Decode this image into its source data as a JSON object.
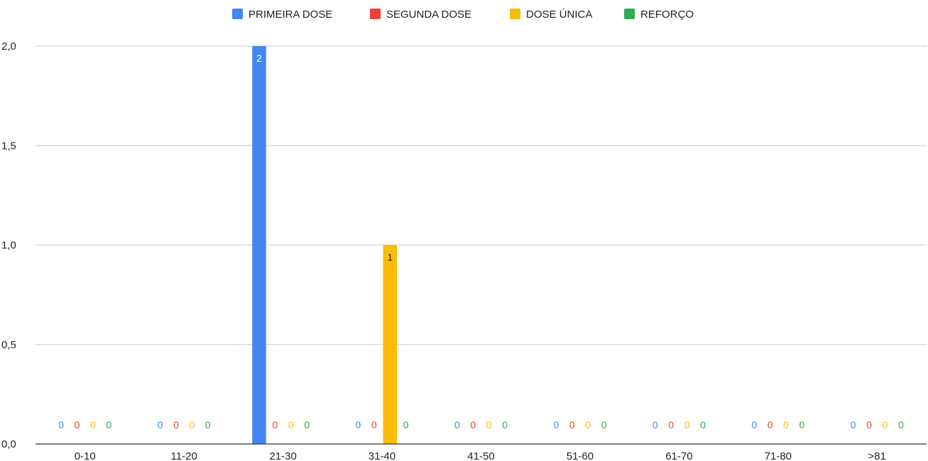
{
  "chart_data": {
    "type": "bar",
    "categories": [
      "0-10",
      "11-20",
      "21-30",
      "31-40",
      "41-50",
      "51-60",
      "61-70",
      "71-80",
      ">81"
    ],
    "series": [
      {
        "name": "PRIMEIRA DOSE",
        "color": "#4285F4",
        "values": [
          0,
          0,
          2,
          0,
          0,
          0,
          0,
          0,
          0
        ]
      },
      {
        "name": "SEGUNDA DOSE",
        "color": "#EA4335",
        "values": [
          0,
          0,
          0,
          0,
          0,
          0,
          0,
          0,
          0
        ]
      },
      {
        "name": "DOSE ÚNICA",
        "color": "#FBBC04",
        "values": [
          0,
          0,
          0,
          1,
          0,
          0,
          0,
          0,
          0
        ]
      },
      {
        "name": "REFORÇO",
        "color": "#34A853",
        "values": [
          0,
          0,
          0,
          0,
          0,
          0,
          0,
          0,
          0
        ]
      }
    ],
    "ylim": [
      0,
      2
    ],
    "yticks": [
      "0,0",
      "0,5",
      "1,0",
      "1,5",
      "2,0"
    ],
    "grid": true,
    "legend_position": "top-center",
    "title": "",
    "xlabel": "",
    "ylabel": ""
  }
}
